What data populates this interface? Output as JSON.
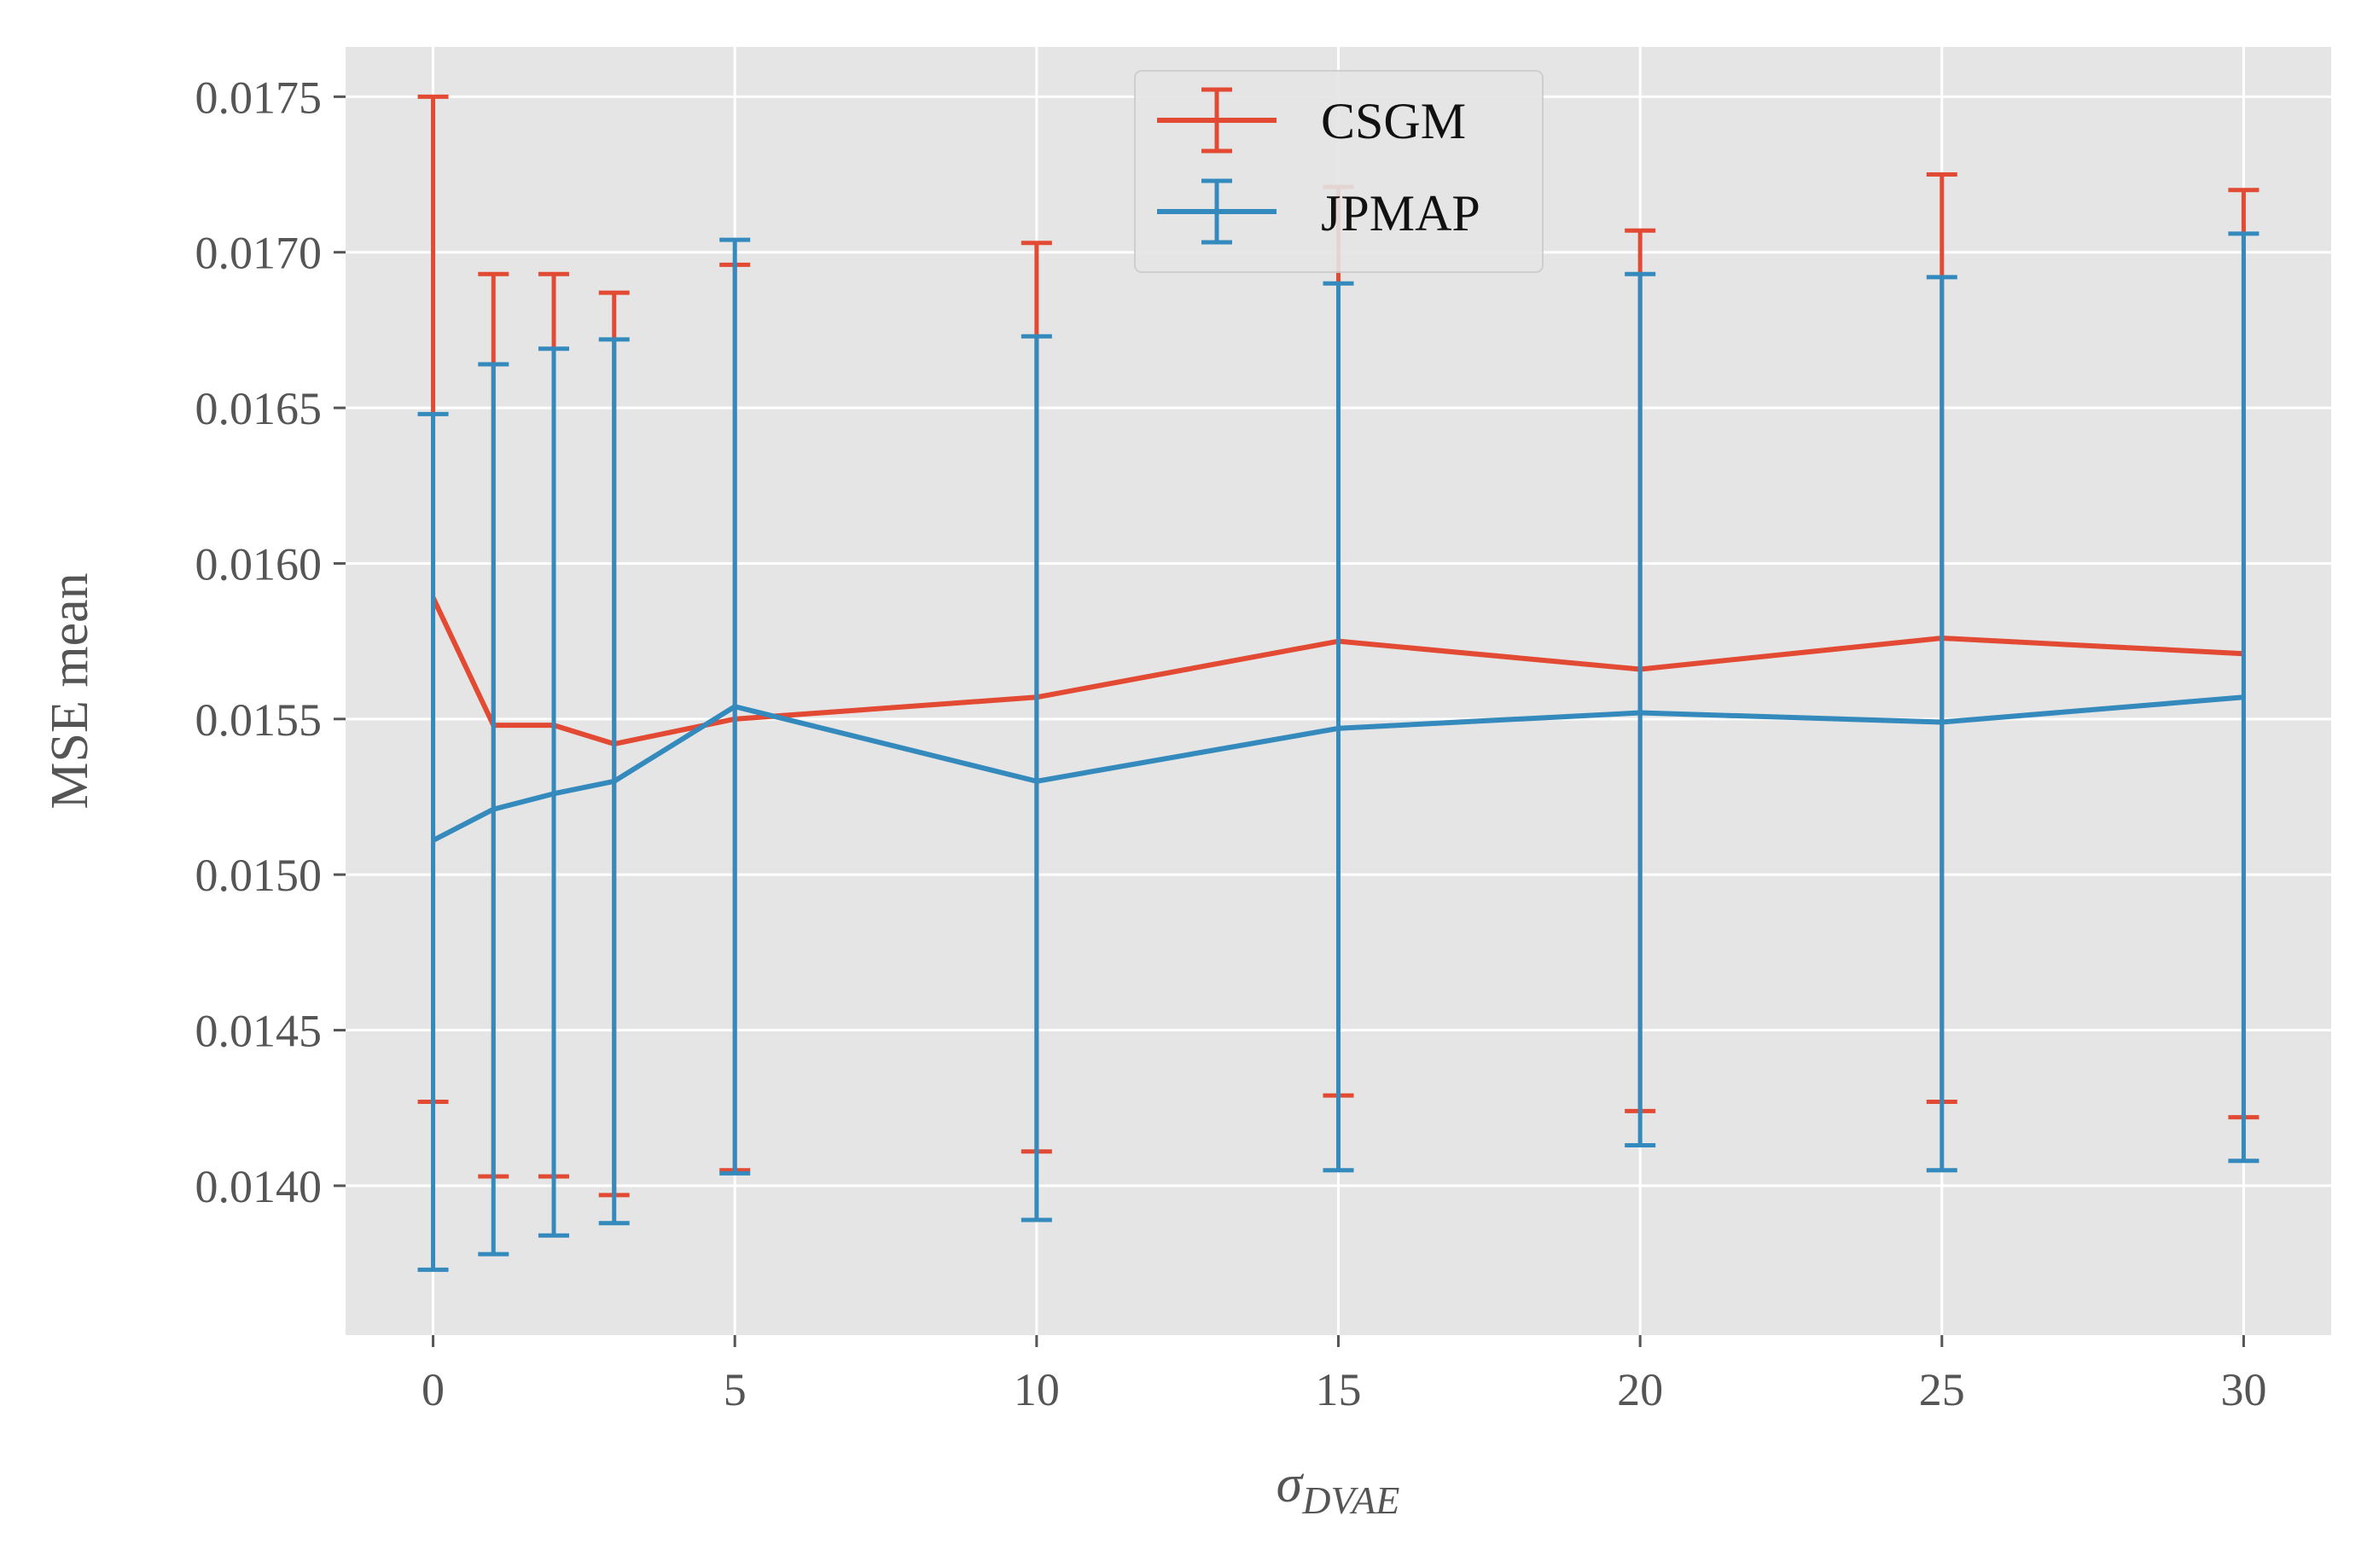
{
  "chart_data": {
    "type": "line",
    "title": "",
    "xlabel": "σ",
    "xlabel_subscript": "DVAE",
    "ylabel": "MSE mean",
    "x": [
      0,
      1,
      2,
      3,
      5,
      10,
      15,
      20,
      25,
      30
    ],
    "xlim": [
      -1.45,
      31.45
    ],
    "ylim": [
      0.01352,
      0.01766
    ],
    "x_ticks": [
      0,
      5,
      10,
      15,
      20,
      25,
      30
    ],
    "x_tick_labels": [
      "0",
      "5",
      "10",
      "15",
      "20",
      "25",
      "30"
    ],
    "y_ticks": [
      0.014,
      0.0145,
      0.015,
      0.0155,
      0.016,
      0.0165,
      0.017,
      0.0175
    ],
    "y_tick_labels": [
      "0.0140",
      "0.0145",
      "0.0150",
      "0.0155",
      "0.0160",
      "0.0165",
      "0.0170",
      "0.0175"
    ],
    "grid": true,
    "background": "#e5e5e5",
    "legend_position": "top-center",
    "series": [
      {
        "name": "CSGM",
        "color": "#e24a33",
        "values": [
          0.01589,
          0.01548,
          0.01548,
          0.01542,
          0.0155,
          0.01557,
          0.01575,
          0.01566,
          0.01576,
          0.01571
        ],
        "lower": [
          0.01427,
          0.01403,
          0.01403,
          0.01397,
          0.01405,
          0.01411,
          0.01429,
          0.01424,
          0.01427,
          0.01422
        ],
        "upper": [
          0.0175,
          0.01693,
          0.01693,
          0.01687,
          0.01696,
          0.01703,
          0.01721,
          0.01707,
          0.01725,
          0.0172
        ]
      },
      {
        "name": "JPMAP",
        "color": "#348abd",
        "values": [
          0.01511,
          0.01521,
          0.01526,
          0.0153,
          0.01554,
          0.0153,
          0.01547,
          0.01552,
          0.01549,
          0.01557
        ],
        "lower": [
          0.01373,
          0.01378,
          0.01384,
          0.01388,
          0.01404,
          0.01389,
          0.01405,
          0.01413,
          0.01405,
          0.01408
        ],
        "upper": [
          0.01648,
          0.01664,
          0.01669,
          0.01672,
          0.01704,
          0.01673,
          0.0169,
          0.01693,
          0.01692,
          0.01706
        ]
      }
    ]
  }
}
